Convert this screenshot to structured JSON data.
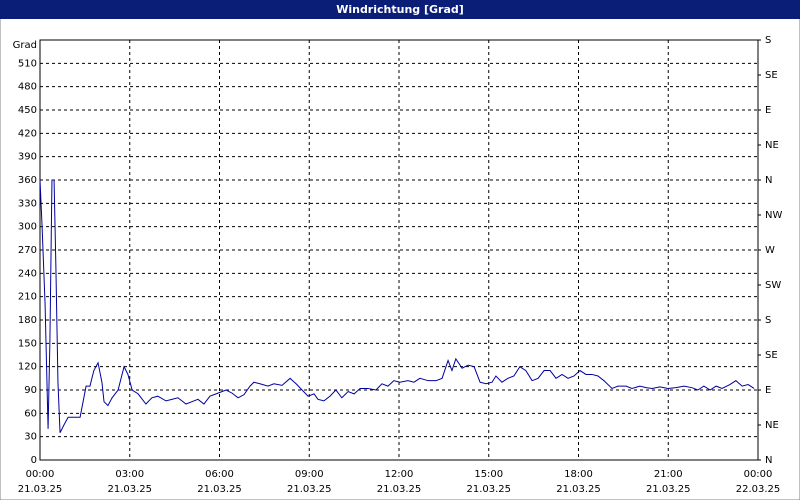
{
  "chart_data": {
    "type": "line",
    "title": "Windrichtung [Grad]",
    "y_label": "Grad",
    "xlim": [
      0,
      24
    ],
    "ylim": [
      0,
      540
    ],
    "y2lim": [
      0,
      540
    ],
    "grid": true,
    "xticks": [
      {
        "value": 0,
        "label": "00:00"
      },
      {
        "value": 3,
        "label": "03:00"
      },
      {
        "value": 6,
        "label": "06:00"
      },
      {
        "value": 9,
        "label": "09:00"
      },
      {
        "value": 12,
        "label": "12:00"
      },
      {
        "value": 15,
        "label": "15:00"
      },
      {
        "value": 18,
        "label": "18:00"
      },
      {
        "value": 21,
        "label": "21:00"
      },
      {
        "value": 24,
        "label": "00:00"
      }
    ],
    "xtick_dates": [
      "21.03.25",
      "21.03.25",
      "21.03.25",
      "21.03.25",
      "21.03.25",
      "21.03.25",
      "21.03.25",
      "21.03.25",
      "22.03.25"
    ],
    "yticks": [
      0,
      30,
      60,
      90,
      120,
      150,
      180,
      210,
      240,
      270,
      300,
      330,
      360,
      390,
      420,
      450,
      480,
      510
    ],
    "y2ticks": [
      {
        "value": 0,
        "label": "N"
      },
      {
        "value": 45,
        "label": "NE"
      },
      {
        "value": 90,
        "label": "E"
      },
      {
        "value": 135,
        "label": "SE"
      },
      {
        "value": 180,
        "label": "S"
      },
      {
        "value": 225,
        "label": "SW"
      },
      {
        "value": 270,
        "label": "W"
      },
      {
        "value": 315,
        "label": "NW"
      },
      {
        "value": 360,
        "label": "N"
      },
      {
        "value": 405,
        "label": "NE"
      },
      {
        "value": 450,
        "label": "E"
      },
      {
        "value": 495,
        "label": "SE"
      },
      {
        "value": 540,
        "label": "S"
      }
    ],
    "x": [
      0,
      0.07,
      0.17,
      0.27,
      0.33,
      0.4,
      0.47,
      0.53,
      0.6,
      0.67,
      0.8,
      0.94,
      1.07,
      1.34,
      1.54,
      1.67,
      1.8,
      1.94,
      2.07,
      2.14,
      2.27,
      2.41,
      2.61,
      2.81,
      2.94,
      3.08,
      3.28,
      3.54,
      3.74,
      3.94,
      4.21,
      4.41,
      4.61,
      4.88,
      5.08,
      5.28,
      5.48,
      5.68,
      5.95,
      6.22,
      6.42,
      6.62,
      6.82,
      7.02,
      7.15,
      7.35,
      7.62,
      7.82,
      8.09,
      8.36,
      8.56,
      8.76,
      8.96,
      9.16,
      9.29,
      9.49,
      9.69,
      9.89,
      10.09,
      10.3,
      10.5,
      10.7,
      10.96,
      11.23,
      11.43,
      11.63,
      11.83,
      12.03,
      12.3,
      12.5,
      12.7,
      12.97,
      13.24,
      13.44,
      13.64,
      13.77,
      13.9,
      14.11,
      14.31,
      14.51,
      14.71,
      14.91,
      15.11,
      15.24,
      15.44,
      15.64,
      15.84,
      16.04,
      16.24,
      16.45,
      16.65,
      16.85,
      17.05,
      17.25,
      17.45,
      17.65,
      17.85,
      18.05,
      18.25,
      18.45,
      18.65,
      18.85,
      19.12,
      19.32,
      19.59,
      19.79,
      20.05,
      20.26,
      20.46,
      20.72,
      20.99,
      21.26,
      21.53,
      21.79,
      21.99,
      22.19,
      22.4,
      22.6,
      22.8,
      23.06,
      23.26,
      23.47,
      23.67,
      23.87
    ],
    "series": [
      {
        "color": "#0000a0",
        "values": [
          360,
          300,
          200,
          40,
          150,
          360,
          360,
          250,
          100,
          35,
          45,
          55,
          55,
          55,
          95,
          95,
          115,
          125,
          100,
          75,
          70,
          80,
          90,
          120,
          110,
          90,
          85,
          72,
          80,
          82,
          76,
          78,
          80,
          72,
          75,
          78,
          72,
          82,
          86,
          90,
          86,
          80,
          84,
          95,
          100,
          98,
          95,
          98,
          96,
          105,
          98,
          90,
          82,
          85,
          78,
          76,
          82,
          90,
          80,
          88,
          85,
          92,
          92,
          90,
          98,
          95,
          102,
          100,
          102,
          100,
          105,
          102,
          102,
          105,
          128,
          115,
          130,
          118,
          122,
          120,
          100,
          98,
          100,
          108,
          100,
          105,
          108,
          120,
          115,
          102,
          105,
          115,
          115,
          105,
          110,
          105,
          108,
          115,
          110,
          110,
          108,
          102,
          92,
          95,
          95,
          92,
          95,
          93,
          92,
          94,
          92,
          93,
          95,
          93,
          90,
          95,
          90,
          95,
          92,
          97,
          102,
          95,
          97,
          92
        ]
      }
    ]
  }
}
